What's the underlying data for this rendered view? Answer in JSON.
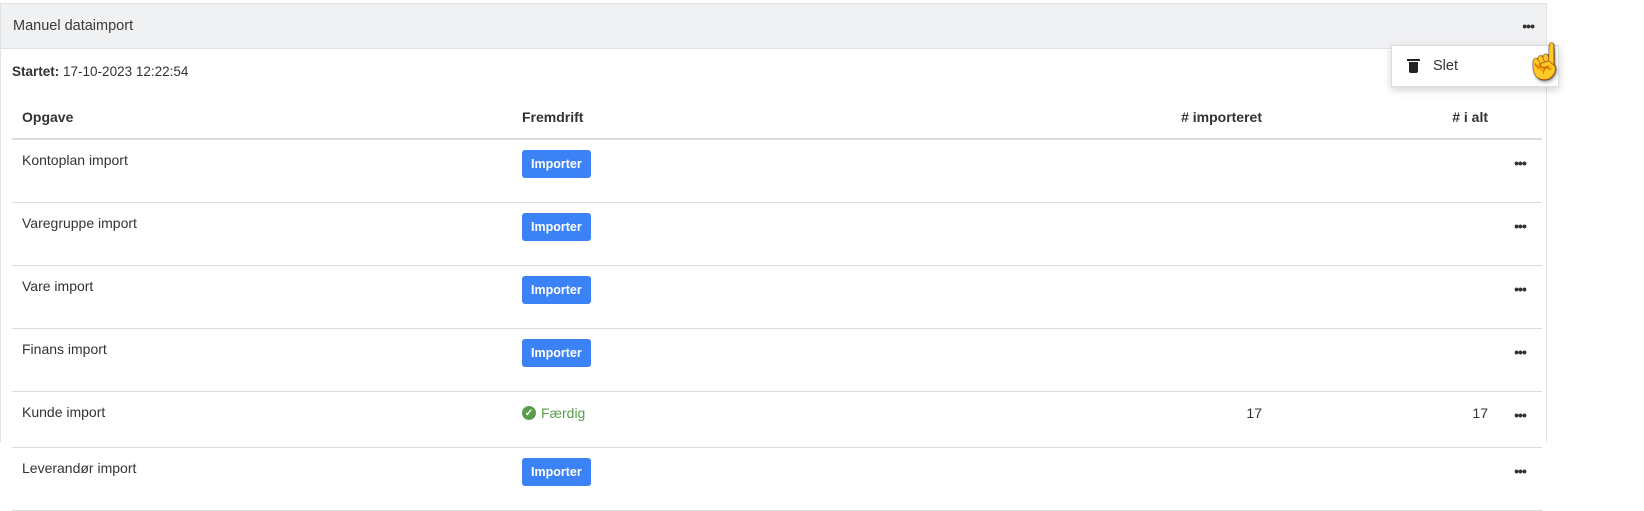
{
  "card": {
    "title": "Manuel dataimport",
    "menu_icon": "more-horizontal-icon"
  },
  "started": {
    "label": "Startet:",
    "value": "17-10-2023 12:22:54"
  },
  "table": {
    "headers": [
      "Opgave",
      "Fremdrift",
      "# importeret",
      "# i alt"
    ],
    "rows": [
      {
        "task": "Kontoplan import",
        "progress": "Importer",
        "status": "button",
        "imported": "",
        "total": ""
      },
      {
        "task": "Varegruppe import",
        "progress": "Importer",
        "status": "button",
        "imported": "",
        "total": ""
      },
      {
        "task": "Vare import",
        "progress": "Importer",
        "status": "button",
        "imported": "",
        "total": ""
      },
      {
        "task": "Finans import",
        "progress": "Importer",
        "status": "button",
        "imported": "",
        "total": ""
      },
      {
        "task": "Kunde import",
        "progress": "Færdig",
        "status": "done",
        "imported": "17",
        "total": "17"
      },
      {
        "task": "Leverandør import",
        "progress": "Importer",
        "status": "button",
        "imported": "",
        "total": ""
      }
    ]
  },
  "dropdown": {
    "items": [
      {
        "label": "Slet",
        "icon": "trash-icon"
      }
    ]
  },
  "colors": {
    "primary": "#3b82f6",
    "success": "#5a9e4b",
    "header_bg": "#f0f1f3"
  }
}
